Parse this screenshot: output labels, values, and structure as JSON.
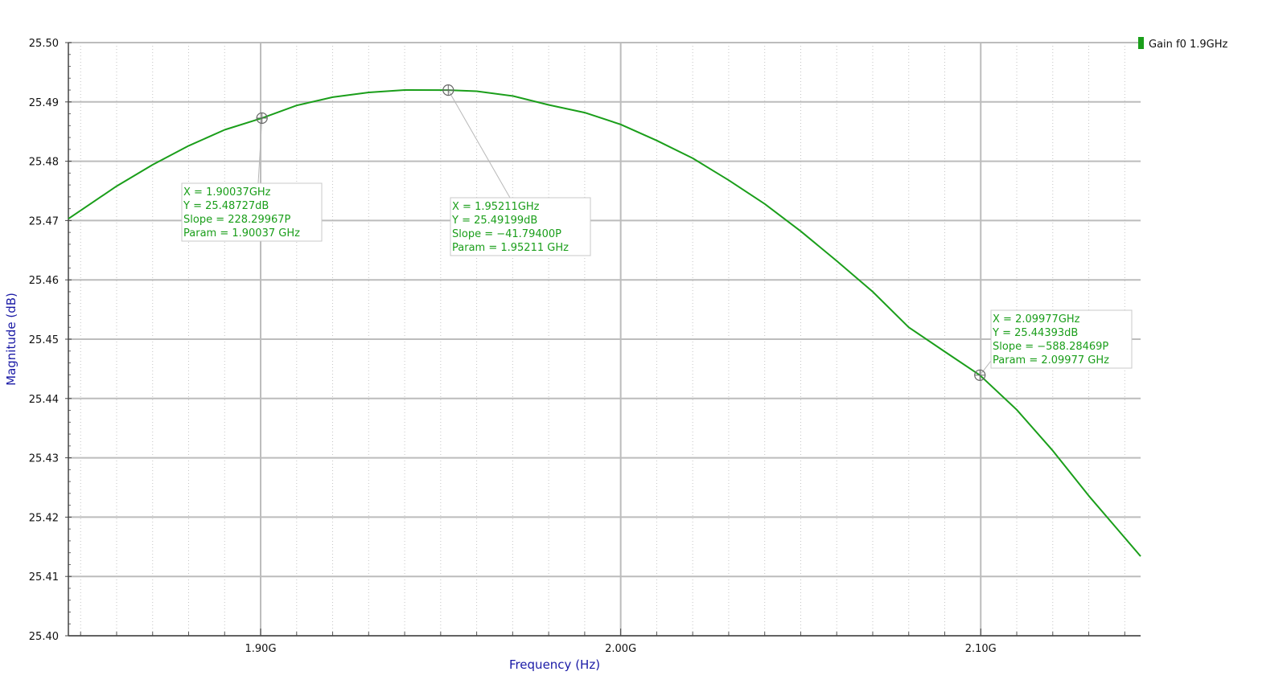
{
  "chart_data": {
    "type": "line",
    "xlabel": "Frequency (Hz)",
    "ylabel": "Magnitude (dB)",
    "xlim": [
      1.8466,
      2.1444
    ],
    "ylim": [
      25.4,
      25.5
    ],
    "x_unit": "GHz",
    "grid": true,
    "legend_position": "top-right",
    "x_ticks": [
      {
        "value": 1.9,
        "label": "1.90G"
      },
      {
        "value": 2.0,
        "label": "2.00G"
      },
      {
        "value": 2.1,
        "label": "2.10G"
      }
    ],
    "y_ticks": [
      {
        "value": 25.4,
        "label": "25.40"
      },
      {
        "value": 25.41,
        "label": "25.41"
      },
      {
        "value": 25.42,
        "label": "25.42"
      },
      {
        "value": 25.43,
        "label": "25.43"
      },
      {
        "value": 25.44,
        "label": "25.44"
      },
      {
        "value": 25.45,
        "label": "25.45"
      },
      {
        "value": 25.46,
        "label": "25.46"
      },
      {
        "value": 25.47,
        "label": "25.47"
      },
      {
        "value": 25.48,
        "label": "25.48"
      },
      {
        "value": 25.49,
        "label": "25.49"
      },
      {
        "value": 25.5,
        "label": "25.50"
      }
    ],
    "series": [
      {
        "name": "Gain f0 1.9GHz",
        "color": "#1a9e1a",
        "x": [
          1.8466,
          1.86,
          1.87,
          1.88,
          1.89,
          1.90037,
          1.91,
          1.92,
          1.93,
          1.94,
          1.95211,
          1.96,
          1.97,
          1.98,
          1.99,
          2.0,
          2.01,
          2.02,
          2.03,
          2.04,
          2.05,
          2.06,
          2.07,
          2.08,
          2.09,
          2.09977,
          2.11,
          2.12,
          2.13,
          2.1444
        ],
        "y": [
          25.4703,
          25.4758,
          25.4794,
          25.4826,
          25.4853,
          25.48727,
          25.4894,
          25.4908,
          25.4916,
          25.492,
          25.49199,
          25.4918,
          25.491,
          25.4895,
          25.4882,
          25.4862,
          25.4835,
          25.4805,
          25.4768,
          25.4728,
          25.4682,
          25.4632,
          25.458,
          25.452,
          25.4479,
          25.44393,
          25.4381,
          25.4312,
          25.4236,
          25.4134
        ]
      }
    ],
    "markers": [
      {
        "x": 1.90037,
        "y": 25.48727,
        "lines": [
          "X = 1.90037GHz",
          "Y = 25.48727dB",
          "Slope = 228.29967P",
          "Param = 1.90037 GHz"
        ]
      },
      {
        "x": 1.95211,
        "y": 25.49199,
        "lines": [
          "X = 1.95211GHz",
          "Y = 25.49199dB",
          "Slope = −41.79400P",
          "Param = 1.95211 GHz"
        ]
      },
      {
        "x": 2.09977,
        "y": 25.44393,
        "lines": [
          "X = 2.09977GHz",
          "Y = 25.44393dB",
          "Slope = −588.28469P",
          "Param = 2.09977 GHz"
        ]
      }
    ]
  }
}
